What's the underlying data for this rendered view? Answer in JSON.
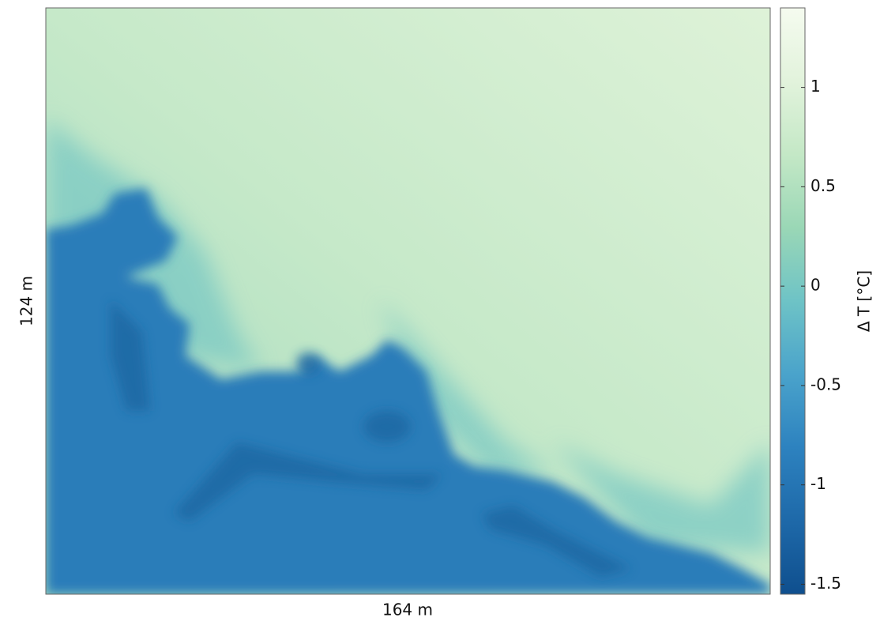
{
  "chart_data": {
    "type": "heatmap",
    "xlabel": "164 m",
    "ylabel": "124 m",
    "colorbar": {
      "label": "Δ T [°C]",
      "lim": [
        -1.55,
        1.4
      ],
      "ticks": [
        -1.5,
        -1,
        -0.5,
        0,
        0.5,
        1
      ],
      "colormap": [
        "#0f4f8e",
        "#1e69a9",
        "#2d82bf",
        "#4aa3cb",
        "#6ec3c6",
        "#9ad7b6",
        "#c4e8c6",
        "#e2f3dc",
        "#f5fbef"
      ]
    }
  }
}
